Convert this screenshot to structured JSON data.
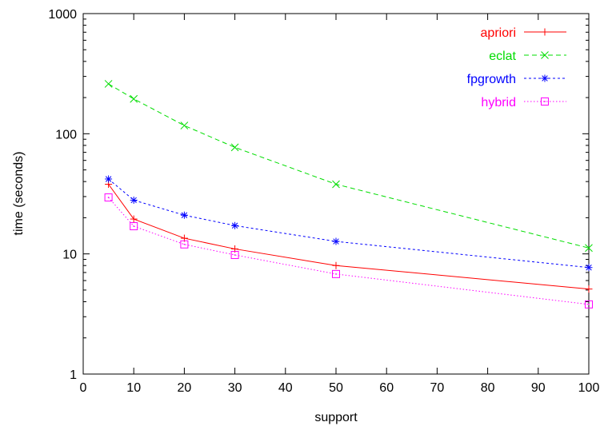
{
  "chart_data": {
    "type": "line",
    "xlabel": "support",
    "ylabel": "time (seconds)",
    "xlim": [
      0,
      100
    ],
    "ylim": [
      1,
      1000
    ],
    "yscale": "log",
    "x_ticks": [
      "0",
      "10",
      "20",
      "30",
      "40",
      "50",
      "60",
      "70",
      "80",
      "90",
      "100"
    ],
    "y_ticks": [
      "1",
      "10",
      "100",
      "1000"
    ],
    "grid": false,
    "legend_position": "top-right",
    "x": [
      5,
      10,
      20,
      30,
      50,
      100
    ],
    "series": [
      {
        "name": "apriori",
        "color": "#ff0000",
        "dash": "solid",
        "marker": "plus",
        "values": [
          38,
          19.5,
          13.5,
          11,
          8,
          5.1
        ]
      },
      {
        "name": "eclat",
        "color": "#00dd00",
        "dash": "dashed",
        "marker": "cross",
        "values": [
          260,
          195,
          117,
          77,
          38,
          11.2
        ]
      },
      {
        "name": "fpgrowth",
        "color": "#0000ff",
        "dash": "dotted-dash",
        "marker": "star",
        "values": [
          42,
          28,
          21,
          17.2,
          12.7,
          7.7
        ]
      },
      {
        "name": "hybrid",
        "color": "#ff00ff",
        "dash": "dotted",
        "marker": "square-dot",
        "values": [
          29.5,
          17,
          12,
          9.8,
          6.8,
          3.8
        ]
      }
    ]
  }
}
